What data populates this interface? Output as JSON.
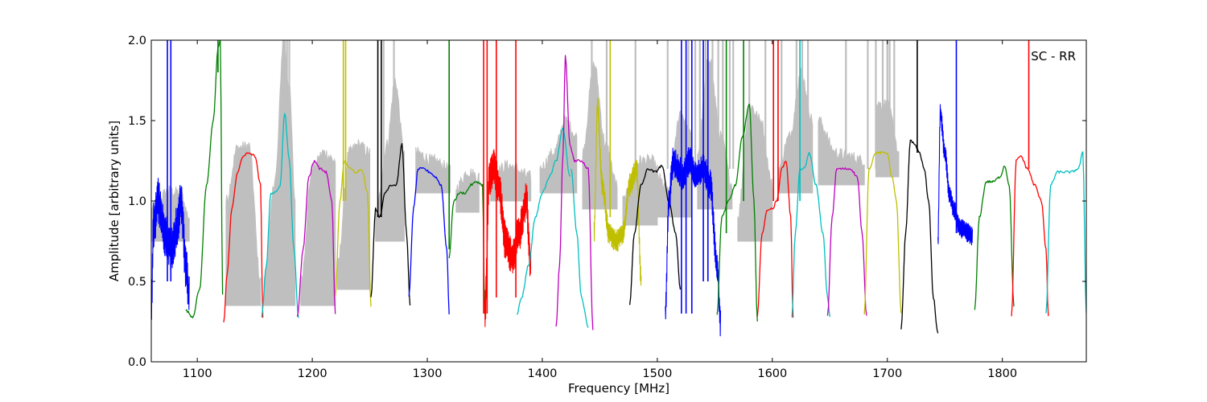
{
  "chart_data": {
    "type": "line",
    "title": "",
    "annotation": "SC - RR",
    "xlabel": "Frequency [MHz]",
    "ylabel": "Amplitude [arbitrary units]",
    "xlim": [
      1060,
      1873
    ],
    "ylim": [
      0.0,
      2.0
    ],
    "xticks": [
      1100,
      1200,
      1300,
      1400,
      1500,
      1600,
      1700,
      1800
    ],
    "xtick_labels": [
      "1100",
      "1200",
      "1300",
      "1400",
      "1500",
      "1600",
      "1700",
      "1800"
    ],
    "yticks": [
      0.0,
      0.5,
      1.0,
      1.5,
      2.0
    ],
    "ytick_labels": [
      "0.0",
      "0.5",
      "1.0",
      "1.5",
      "2.0"
    ],
    "grid": false,
    "legend": "none",
    "background_envelope": {
      "color": "#bfbfbf",
      "segments": [
        {
          "x": [
            1060,
            1075,
            1085,
            1093
          ],
          "y": [
            0.95,
            1.06,
            1.05,
            0.9
          ]
        },
        {
          "x": [
            1125,
            1135,
            1145,
            1155
          ],
          "y": [
            1.0,
            1.33,
            1.34,
            0.5
          ]
        },
        {
          "x": [
            1158,
            1168,
            1175,
            1180,
            1185
          ],
          "y": [
            0.5,
            1.15,
            2.0,
            1.7,
            1.0
          ]
        },
        {
          "x": [
            1190,
            1200,
            1210,
            1220
          ],
          "y": [
            0.5,
            1.2,
            1.3,
            1.25
          ]
        },
        {
          "x": [
            1222,
            1232,
            1240,
            1250
          ],
          "y": [
            0.6,
            1.3,
            1.35,
            1.3
          ]
        },
        {
          "x": [
            1255,
            1265,
            1272,
            1280
          ],
          "y": [
            0.9,
            1.35,
            1.75,
            1.3
          ]
        },
        {
          "x": [
            1290,
            1305,
            1320
          ],
          "y": [
            1.3,
            1.25,
            1.2
          ]
        },
        {
          "x": [
            1325,
            1335,
            1345
          ],
          "y": [
            1.08,
            1.18,
            1.15
          ]
        },
        {
          "x": [
            1355,
            1370,
            1390
          ],
          "y": [
            1.15,
            1.22,
            1.15
          ]
        },
        {
          "x": [
            1398,
            1410,
            1420,
            1430
          ],
          "y": [
            1.2,
            1.3,
            1.5,
            1.4
          ]
        },
        {
          "x": [
            1435,
            1445,
            1455,
            1465
          ],
          "y": [
            1.3,
            1.85,
            1.35,
            1.1
          ]
        },
        {
          "x": [
            1470,
            1485,
            1495,
            1500
          ],
          "y": [
            1.0,
            1.25,
            1.25,
            1.2
          ]
        },
        {
          "x": [
            1500,
            1510,
            1520,
            1530
          ],
          "y": [
            1.15,
            1.05,
            1.55,
            1.4
          ]
        },
        {
          "x": [
            1535,
            1545,
            1555,
            1565
          ],
          "y": [
            1.3,
            1.9,
            1.4,
            1.1
          ]
        },
        {
          "x": [
            1570,
            1580,
            1590,
            1600
          ],
          "y": [
            0.9,
            1.6,
            1.5,
            1.1
          ]
        },
        {
          "x": [
            1605,
            1615,
            1625,
            1635
          ],
          "y": [
            1.2,
            1.4,
            1.8,
            1.5
          ]
        },
        {
          "x": [
            1640,
            1655,
            1665,
            1680
          ],
          "y": [
            1.5,
            1.3,
            1.28,
            1.25
          ]
        },
        {
          "x": [
            1690,
            1700,
            1710
          ],
          "y": [
            1.6,
            1.6,
            1.3
          ]
        }
      ]
    },
    "series": [
      {
        "color": "#0000ff",
        "x": [
          1060,
          1062,
          1066,
          1072,
          1078,
          1082,
          1086,
          1090,
          1093
        ],
        "y": [
          0.35,
          0.85,
          1.0,
          0.78,
          0.7,
          0.82,
          1.0,
          0.6,
          0.4
        ],
        "noise": 0.12
      },
      {
        "color": "#008000",
        "x": [
          1090,
          1096,
          1102,
          1108,
          1114,
          1118,
          1120,
          1122
        ],
        "y": [
          0.32,
          0.28,
          0.45,
          1.1,
          1.5,
          1.95,
          2.0,
          0.42
        ]
      },
      {
        "color": "#ff0000",
        "x": [
          1123,
          1126,
          1130,
          1135,
          1140,
          1145,
          1150,
          1155,
          1157
        ],
        "y": [
          0.25,
          0.55,
          0.95,
          1.18,
          1.28,
          1.3,
          1.28,
          1.1,
          0.28
        ]
      },
      {
        "color": "#00bfbf",
        "x": [
          1156,
          1160,
          1164,
          1168,
          1172,
          1176,
          1180,
          1184,
          1188
        ],
        "y": [
          0.28,
          0.6,
          1.05,
          1.05,
          1.1,
          1.55,
          1.25,
          0.7,
          0.28
        ]
      },
      {
        "color": "#bf00bf",
        "x": [
          1187,
          1192,
          1197,
          1202,
          1207,
          1212,
          1217,
          1220
        ],
        "y": [
          0.28,
          0.7,
          1.15,
          1.25,
          1.2,
          1.18,
          1.0,
          0.3
        ]
      },
      {
        "color": "#bfbf00",
        "x": [
          1220,
          1224,
          1228,
          1233,
          1238,
          1243,
          1248,
          1251
        ],
        "y": [
          0.4,
          1.0,
          1.25,
          1.2,
          1.18,
          1.2,
          1.05,
          0.35
        ]
      },
      {
        "color": "#000000",
        "x": [
          1251,
          1255,
          1259,
          1263,
          1268,
          1273,
          1278,
          1282,
          1285
        ],
        "y": [
          0.4,
          0.95,
          0.9,
          1.05,
          1.1,
          1.1,
          1.35,
          0.8,
          0.35
        ]
      },
      {
        "color": "#0000ff",
        "x": [
          1284,
          1288,
          1292,
          1297,
          1302,
          1307,
          1312,
          1317,
          1319
        ],
        "y": [
          0.4,
          0.95,
          1.2,
          1.2,
          1.18,
          1.15,
          1.1,
          0.7,
          0.3
        ]
      },
      {
        "color": "#008000",
        "x": [
          1319,
          1323,
          1328,
          1333,
          1338,
          1343,
          1348,
          1350
        ],
        "y": [
          0.65,
          1.0,
          1.05,
          1.05,
          1.1,
          1.12,
          1.1,
          0.3
        ]
      },
      {
        "color": "#ff0000",
        "x": [
          1350,
          1354,
          1358,
          1362,
          1368,
          1374,
          1380,
          1386,
          1390
        ],
        "y": [
          0.3,
          1.15,
          1.2,
          1.1,
          0.75,
          0.65,
          0.8,
          1.0,
          0.6
        ],
        "noise": 0.1
      },
      {
        "color": "#00bfbf",
        "x": [
          1378,
          1382,
          1388,
          1394,
          1400,
          1406,
          1412,
          1418,
          1424
        ],
        "y": [
          0.3,
          0.4,
          0.6,
          0.9,
          1.05,
          1.15,
          1.25,
          1.45,
          1.15
        ]
      },
      {
        "color": "#bf00bf",
        "x": [
          1412,
          1415,
          1418,
          1420,
          1424,
          1428,
          1434,
          1440,
          1444
        ],
        "y": [
          0.22,
          0.6,
          1.3,
          1.9,
          1.35,
          1.25,
          1.25,
          1.2,
          0.2
        ]
      },
      {
        "color": "#00bfbf",
        "x": [
          1425,
          1430,
          1434,
          1440
        ],
        "y": [
          1.2,
          0.8,
          0.4,
          0.22
        ]
      },
      {
        "color": "#bfbf00",
        "x": [
          1445,
          1448,
          1452,
          1458,
          1464,
          1470,
          1476,
          1482,
          1486
        ],
        "y": [
          0.8,
          1.6,
          1.1,
          0.8,
          0.75,
          0.8,
          1.1,
          1.2,
          0.5
        ],
        "noise": 0.06
      },
      {
        "color": "#000000",
        "x": [
          1476,
          1480,
          1486,
          1492,
          1498,
          1504,
          1510,
          1516,
          1520
        ],
        "y": [
          0.35,
          0.8,
          1.1,
          1.2,
          1.18,
          1.22,
          1.0,
          0.8,
          0.45
        ]
      },
      {
        "color": "#0000ff",
        "x": [
          1507,
          1510,
          1514,
          1518,
          1522,
          1528,
          1534,
          1540,
          1546,
          1552,
          1555
        ],
        "y": [
          0.3,
          1.0,
          1.25,
          1.2,
          1.15,
          1.25,
          1.15,
          1.2,
          1.1,
          0.6,
          0.25
        ],
        "noise": 0.08
      },
      {
        "color": "#008000",
        "x": [
          1552,
          1556,
          1562,
          1568,
          1574,
          1580,
          1584,
          1587
        ],
        "y": [
          0.3,
          0.9,
          1.0,
          1.1,
          1.4,
          1.6,
          1.0,
          0.25
        ]
      },
      {
        "color": "#ff0000",
        "x": [
          1587,
          1591,
          1596,
          1600,
          1604,
          1608,
          1612,
          1616,
          1618
        ],
        "y": [
          0.28,
          0.8,
          0.95,
          0.95,
          1.0,
          1.2,
          1.25,
          0.9,
          0.28
        ]
      },
      {
        "color": "#00bfbf",
        "x": [
          1617,
          1620,
          1624,
          1628,
          1632,
          1638,
          1644,
          1648,
          1650
        ],
        "y": [
          0.28,
          0.8,
          1.2,
          1.2,
          1.3,
          1.1,
          0.8,
          0.4,
          0.28
        ]
      },
      {
        "color": "#bf00bf",
        "x": [
          1648,
          1652,
          1656,
          1662,
          1668,
          1674,
          1678,
          1682
        ],
        "y": [
          0.28,
          0.9,
          1.2,
          1.2,
          1.2,
          1.15,
          0.8,
          0.28
        ]
      },
      {
        "color": "#bfbf00",
        "x": [
          1680,
          1684,
          1690,
          1696,
          1700,
          1704,
          1708,
          1712
        ],
        "y": [
          0.3,
          1.2,
          1.3,
          1.3,
          1.3,
          1.15,
          1.0,
          0.3
        ]
      },
      {
        "color": "#000000",
        "x": [
          1712,
          1716,
          1720,
          1724,
          1728,
          1732,
          1736,
          1740,
          1744
        ],
        "y": [
          0.2,
          0.8,
          1.38,
          1.35,
          1.3,
          1.2,
          1.0,
          0.4,
          0.17
        ]
      },
      {
        "color": "#0000ff",
        "x": [
          1744,
          1746,
          1750,
          1754,
          1758,
          1762,
          1766,
          1770,
          1774
        ],
        "y": [
          0.75,
          1.55,
          1.3,
          1.05,
          0.95,
          0.85,
          0.82,
          0.8,
          0.78
        ],
        "noise": 0.05
      },
      {
        "color": "#008000",
        "x": [
          1776,
          1780,
          1786,
          1792,
          1798,
          1802,
          1806,
          1810
        ],
        "y": [
          0.32,
          0.9,
          1.12,
          1.12,
          1.15,
          1.22,
          1.1,
          0.35
        ]
      },
      {
        "color": "#ff0000",
        "x": [
          1808,
          1812,
          1816,
          1822,
          1828,
          1834,
          1838,
          1840
        ],
        "y": [
          0.28,
          1.25,
          1.28,
          1.2,
          1.1,
          1.0,
          0.7,
          0.28
        ]
      },
      {
        "color": "#00bfbf",
        "x": [
          1838,
          1842,
          1848,
          1854,
          1860,
          1866,
          1870,
          1873
        ],
        "y": [
          0.3,
          1.1,
          1.18,
          1.18,
          1.18,
          1.2,
          1.3,
          0.3
        ]
      }
    ],
    "spikes": [
      {
        "x": 1074,
        "color": "#0000ff",
        "from": 0.5
      },
      {
        "x": 1077,
        "color": "#0000ff",
        "from": 0.5
      },
      {
        "x": 1118,
        "color": "#008000",
        "from": 1.8
      },
      {
        "x": 1227,
        "color": "#bfbf00",
        "from": 1.0
      },
      {
        "x": 1229,
        "color": "#bfbf00",
        "from": 1.0
      },
      {
        "x": 1257,
        "color": "#000000",
        "from": 0.9
      },
      {
        "x": 1260,
        "color": "#000000",
        "from": 0.9
      },
      {
        "x": 1319,
        "color": "#008000",
        "from": 0.7
      },
      {
        "x": 1349,
        "color": "#ff0000",
        "from": 0.3
      },
      {
        "x": 1352,
        "color": "#ff0000",
        "from": 0.3
      },
      {
        "x": 1360,
        "color": "#ff0000",
        "from": 0.4
      },
      {
        "x": 1377,
        "color": "#ff0000",
        "from": 0.4
      },
      {
        "x": 1459,
        "color": "#bfbf00",
        "from": 0.9
      },
      {
        "x": 1521,
        "color": "#0000ff",
        "from": 0.3
      },
      {
        "x": 1525,
        "color": "#0000ff",
        "from": 0.3
      },
      {
        "x": 1530,
        "color": "#0000ff",
        "from": 0.3
      },
      {
        "x": 1540,
        "color": "#0000ff",
        "from": 0.5
      },
      {
        "x": 1544,
        "color": "#0000ff",
        "from": 0.5
      },
      {
        "x": 1560,
        "color": "#008000",
        "from": 0.8
      },
      {
        "x": 1575,
        "color": "#008000",
        "from": 1.0
      },
      {
        "x": 1601,
        "color": "#ff0000",
        "from": 1.0
      },
      {
        "x": 1605,
        "color": "#ff0000",
        "from": 1.0
      },
      {
        "x": 1624,
        "color": "#00bfbf",
        "from": 1.0
      },
      {
        "x": 1726,
        "color": "#000000",
        "from": 1.3
      },
      {
        "x": 1760,
        "color": "#0000ff",
        "from": 0.8
      },
      {
        "x": 1823,
        "color": "#ff0000",
        "from": 1.2
      }
    ],
    "grey_spikes": [
      1176,
      1178,
      1180,
      1262,
      1271,
      1443,
      1456,
      1481,
      1509,
      1527,
      1533,
      1537,
      1542,
      1548,
      1553,
      1557,
      1563,
      1566,
      1580,
      1594,
      1608,
      1621,
      1626,
      1631,
      1664,
      1683,
      1690,
      1696,
      1700,
      1702,
      1706
    ]
  }
}
